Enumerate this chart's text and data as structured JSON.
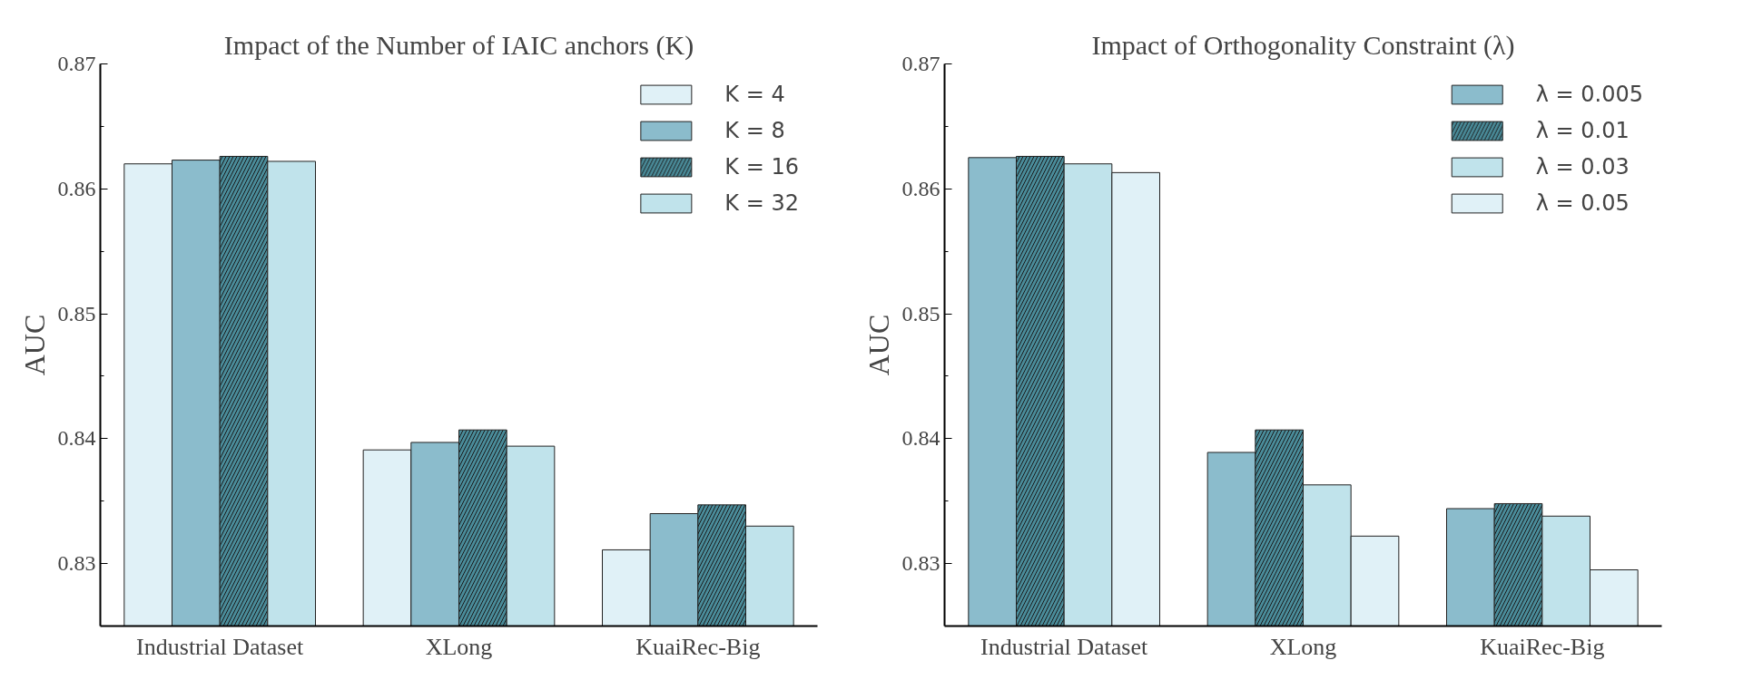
{
  "chart_data": [
    {
      "type": "bar",
      "title": "Impact of the Number of IAIC anchors (K)",
      "ylabel": "AUC",
      "categories": [
        "Industrial Dataset",
        "XLong",
        "KuaiRec-Big"
      ],
      "ylim": [
        0.825,
        0.87
      ],
      "yticks": [
        0.83,
        {
          "value": 0.835,
          "label": null
        },
        0.84,
        {
          "value": 0.845,
          "label": null
        },
        0.85,
        {
          "value": 0.855,
          "label": null
        },
        0.86,
        {
          "value": 0.865,
          "label": null
        },
        0.87
      ],
      "legend": "top right",
      "grid": false,
      "series": [
        {
          "name": "K = 4",
          "color": "#e0f1f7",
          "values": [
            0.862,
            0.8391,
            0.8311
          ]
        },
        {
          "name": "K = 8",
          "color": "#8bbccc",
          "values": [
            0.8623,
            0.8397,
            0.834
          ]
        },
        {
          "name": "K = 16",
          "color": "#4a8c9a",
          "values": [
            0.8626,
            0.8407,
            0.8347
          ]
        },
        {
          "name": "K = 32",
          "color": "#c0e3eb",
          "values": [
            0.8622,
            0.8394,
            0.833
          ]
        }
      ]
    },
    {
      "type": "bar",
      "title": "Impact of Orthogonality Constraint (λ)",
      "ylabel": "AUC",
      "categories": [
        "Industrial Dataset",
        "XLong",
        "KuaiRec-Big"
      ],
      "ylim": [
        0.825,
        0.87
      ],
      "yticks": [
        0.83,
        {
          "value": 0.835,
          "label": null
        },
        0.84,
        {
          "value": 0.845,
          "label": null
        },
        0.85,
        {
          "value": 0.855,
          "label": null
        },
        0.86,
        {
          "value": 0.865,
          "label": null
        },
        0.87
      ],
      "legend": "top right",
      "grid": false,
      "series": [
        {
          "name": "λ = 0.005",
          "color": "#8bbccc",
          "values": [
            0.8625,
            0.8389,
            0.8344
          ]
        },
        {
          "name": "λ = 0.01",
          "color": "#4a8c9a",
          "values": [
            0.8626,
            0.8407,
            0.8348
          ]
        },
        {
          "name": "λ = 0.03",
          "color": "#c0e3eb",
          "values": [
            0.862,
            0.8363,
            0.8338
          ]
        },
        {
          "name": "λ = 0.05",
          "color": "#e0f1f7",
          "values": [
            0.8613,
            0.8322,
            0.8295
          ]
        }
      ]
    }
  ]
}
